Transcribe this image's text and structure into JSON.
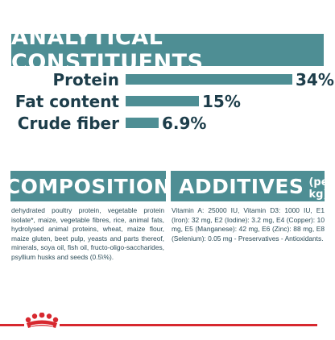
{
  "analytics": {
    "title": "ANALYTICAL CONSTITUENTS",
    "rows": [
      {
        "label": "Protein",
        "value": "34%",
        "fraction": 1.0
      },
      {
        "label": "Fat content",
        "value": "15%",
        "fraction": 0.44
      },
      {
        "label": "Crude fiber",
        "value": "6.9%",
        "fraction": 0.2
      }
    ]
  },
  "composition": {
    "title": "COMPOSITION",
    "text": "dehydrated poultry protein, vegetable protein isolate*, maize, vegetable fibres, rice, animal fats, hydrolysed animal proteins, wheat, maize flour, maize gluten, beet pulp, yeasts and parts thereof, minerals, soya oil, fish oil, fructo-oligo-saccharides, psyllium husks and seeds (0.5\\%)."
  },
  "additives": {
    "title": "ADDITIVES",
    "title_suffix": "(per kg)",
    "text": "Vitamin A: 25000 IU, Vitamin D3: 1000 IU, E1 (Iron): 32 mg, E2 (Iodine): 3.2 mg, E4 (Copper): 10 mg, E5 (Manganese): 42 mg, E6 (Zinc): 88 mg, E8 (Selenium): 0.05 mg - Preservatives - Antioxidants."
  },
  "colors": {
    "accent": "#4e8e94",
    "text": "#1d3d4a",
    "brand_red": "#d7282f"
  },
  "footer": {
    "logo_icon": "royal-canin-crown-icon"
  }
}
